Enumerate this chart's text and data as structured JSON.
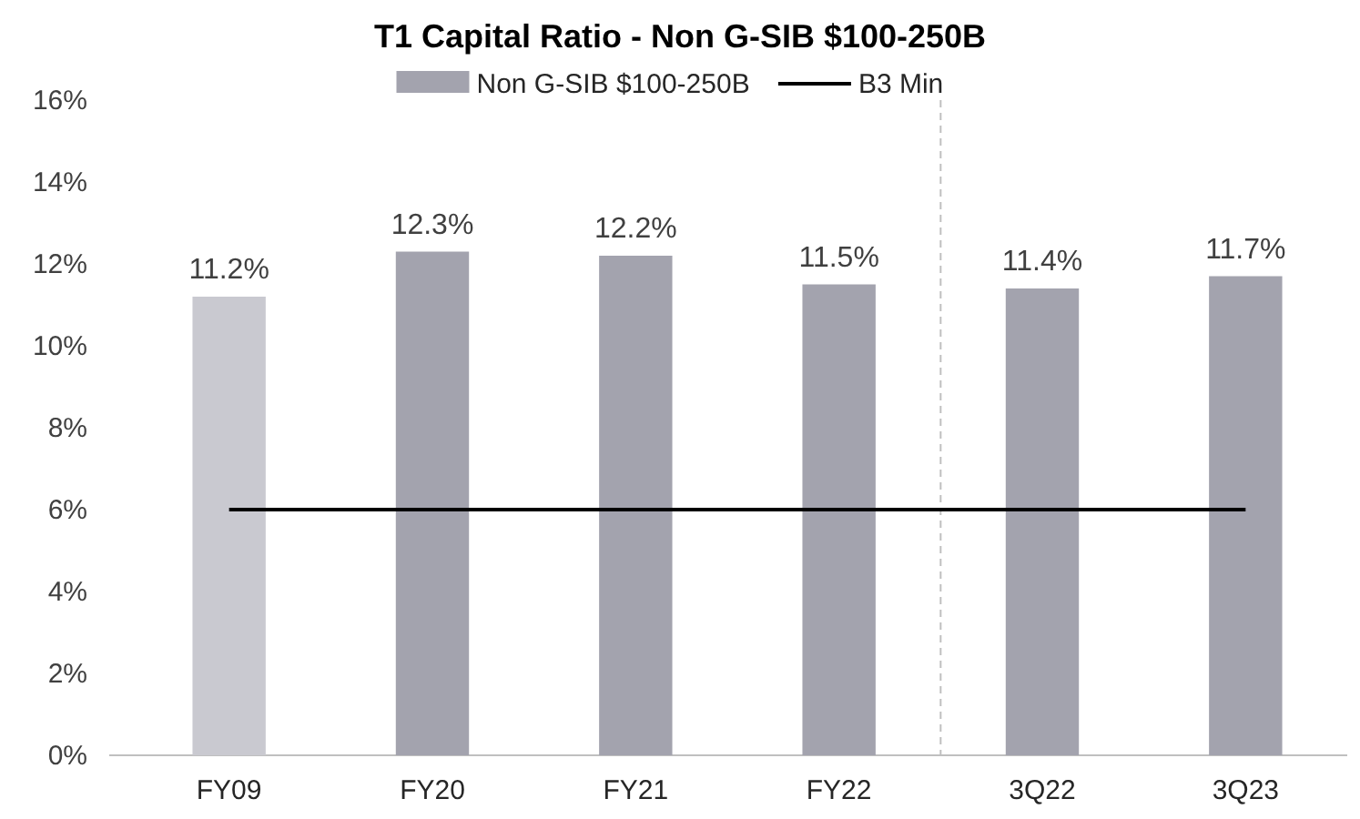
{
  "chart_data": {
    "type": "bar",
    "title": "T1 Capital Ratio - Non G-SIB $100-250B",
    "categories": [
      "FY09",
      "FY20",
      "FY21",
      "FY22",
      "3Q22",
      "3Q23"
    ],
    "series": [
      {
        "name": "Non G-SIB $100-250B",
        "color": "#a3a3ae",
        "colors": [
          "#c9c9d0",
          "#a3a3ae",
          "#a3a3ae",
          "#a3a3ae",
          "#a3a3ae",
          "#a3a3ae"
        ],
        "values": [
          11.2,
          12.3,
          12.2,
          11.5,
          11.4,
          11.7
        ],
        "value_labels": [
          "11.2%",
          "12.3%",
          "12.2%",
          "11.5%",
          "11.4%",
          "11.7%"
        ]
      },
      {
        "name": "B3 Min",
        "type": "line",
        "color": "#000000",
        "values": [
          6,
          6,
          6,
          6,
          6,
          6
        ]
      }
    ],
    "ylim": [
      0,
      16
    ],
    "yticks": [
      {
        "value": 0,
        "label": "0%"
      },
      {
        "value": 2,
        "label": "2%"
      },
      {
        "value": 4,
        "label": "4%"
      },
      {
        "value": 6,
        "label": "6%"
      },
      {
        "value": 8,
        "label": "8%"
      },
      {
        "value": 10,
        "label": "10%"
      },
      {
        "value": 12,
        "label": "12%"
      },
      {
        "value": 14,
        "label": "14%"
      },
      {
        "value": 16,
        "label": "16%"
      }
    ],
    "legend": "top",
    "grid": false,
    "marker": "none",
    "line_style": "solid"
  }
}
